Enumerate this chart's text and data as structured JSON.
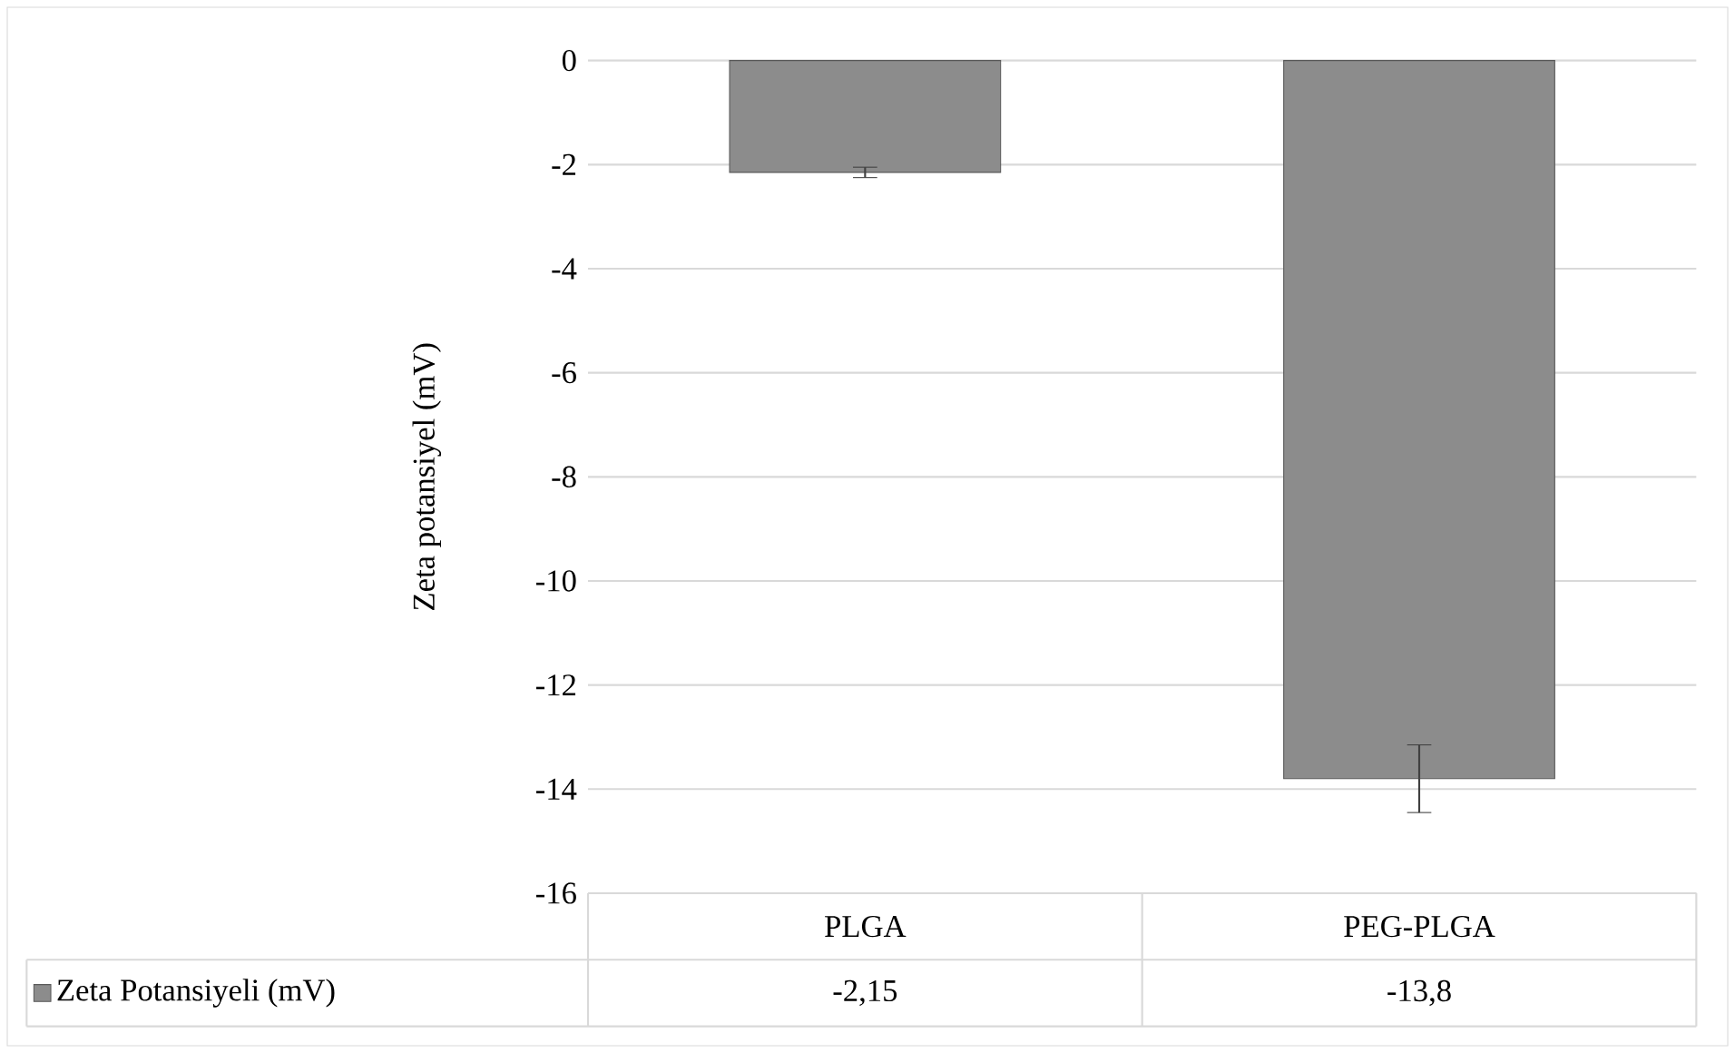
{
  "chart_data": {
    "type": "bar",
    "ylabel": "Zeta potansiyel (mV)",
    "categories": [
      "PLGA",
      "PEG-PLGA"
    ],
    "series": [
      {
        "name": "Zeta Potansiyeli (mV)",
        "color": "#8c8c8c",
        "values": [
          -2.15,
          -13.8
        ],
        "errors": [
          0.1,
          0.65
        ],
        "value_labels": [
          "-2,15",
          "-13,8"
        ]
      }
    ],
    "ylim": [
      -16,
      0
    ],
    "yticks": [
      -16,
      -14,
      -12,
      -10,
      -8,
      -6,
      -4,
      -2,
      0
    ],
    "grid": "y",
    "legend": "bottom"
  }
}
